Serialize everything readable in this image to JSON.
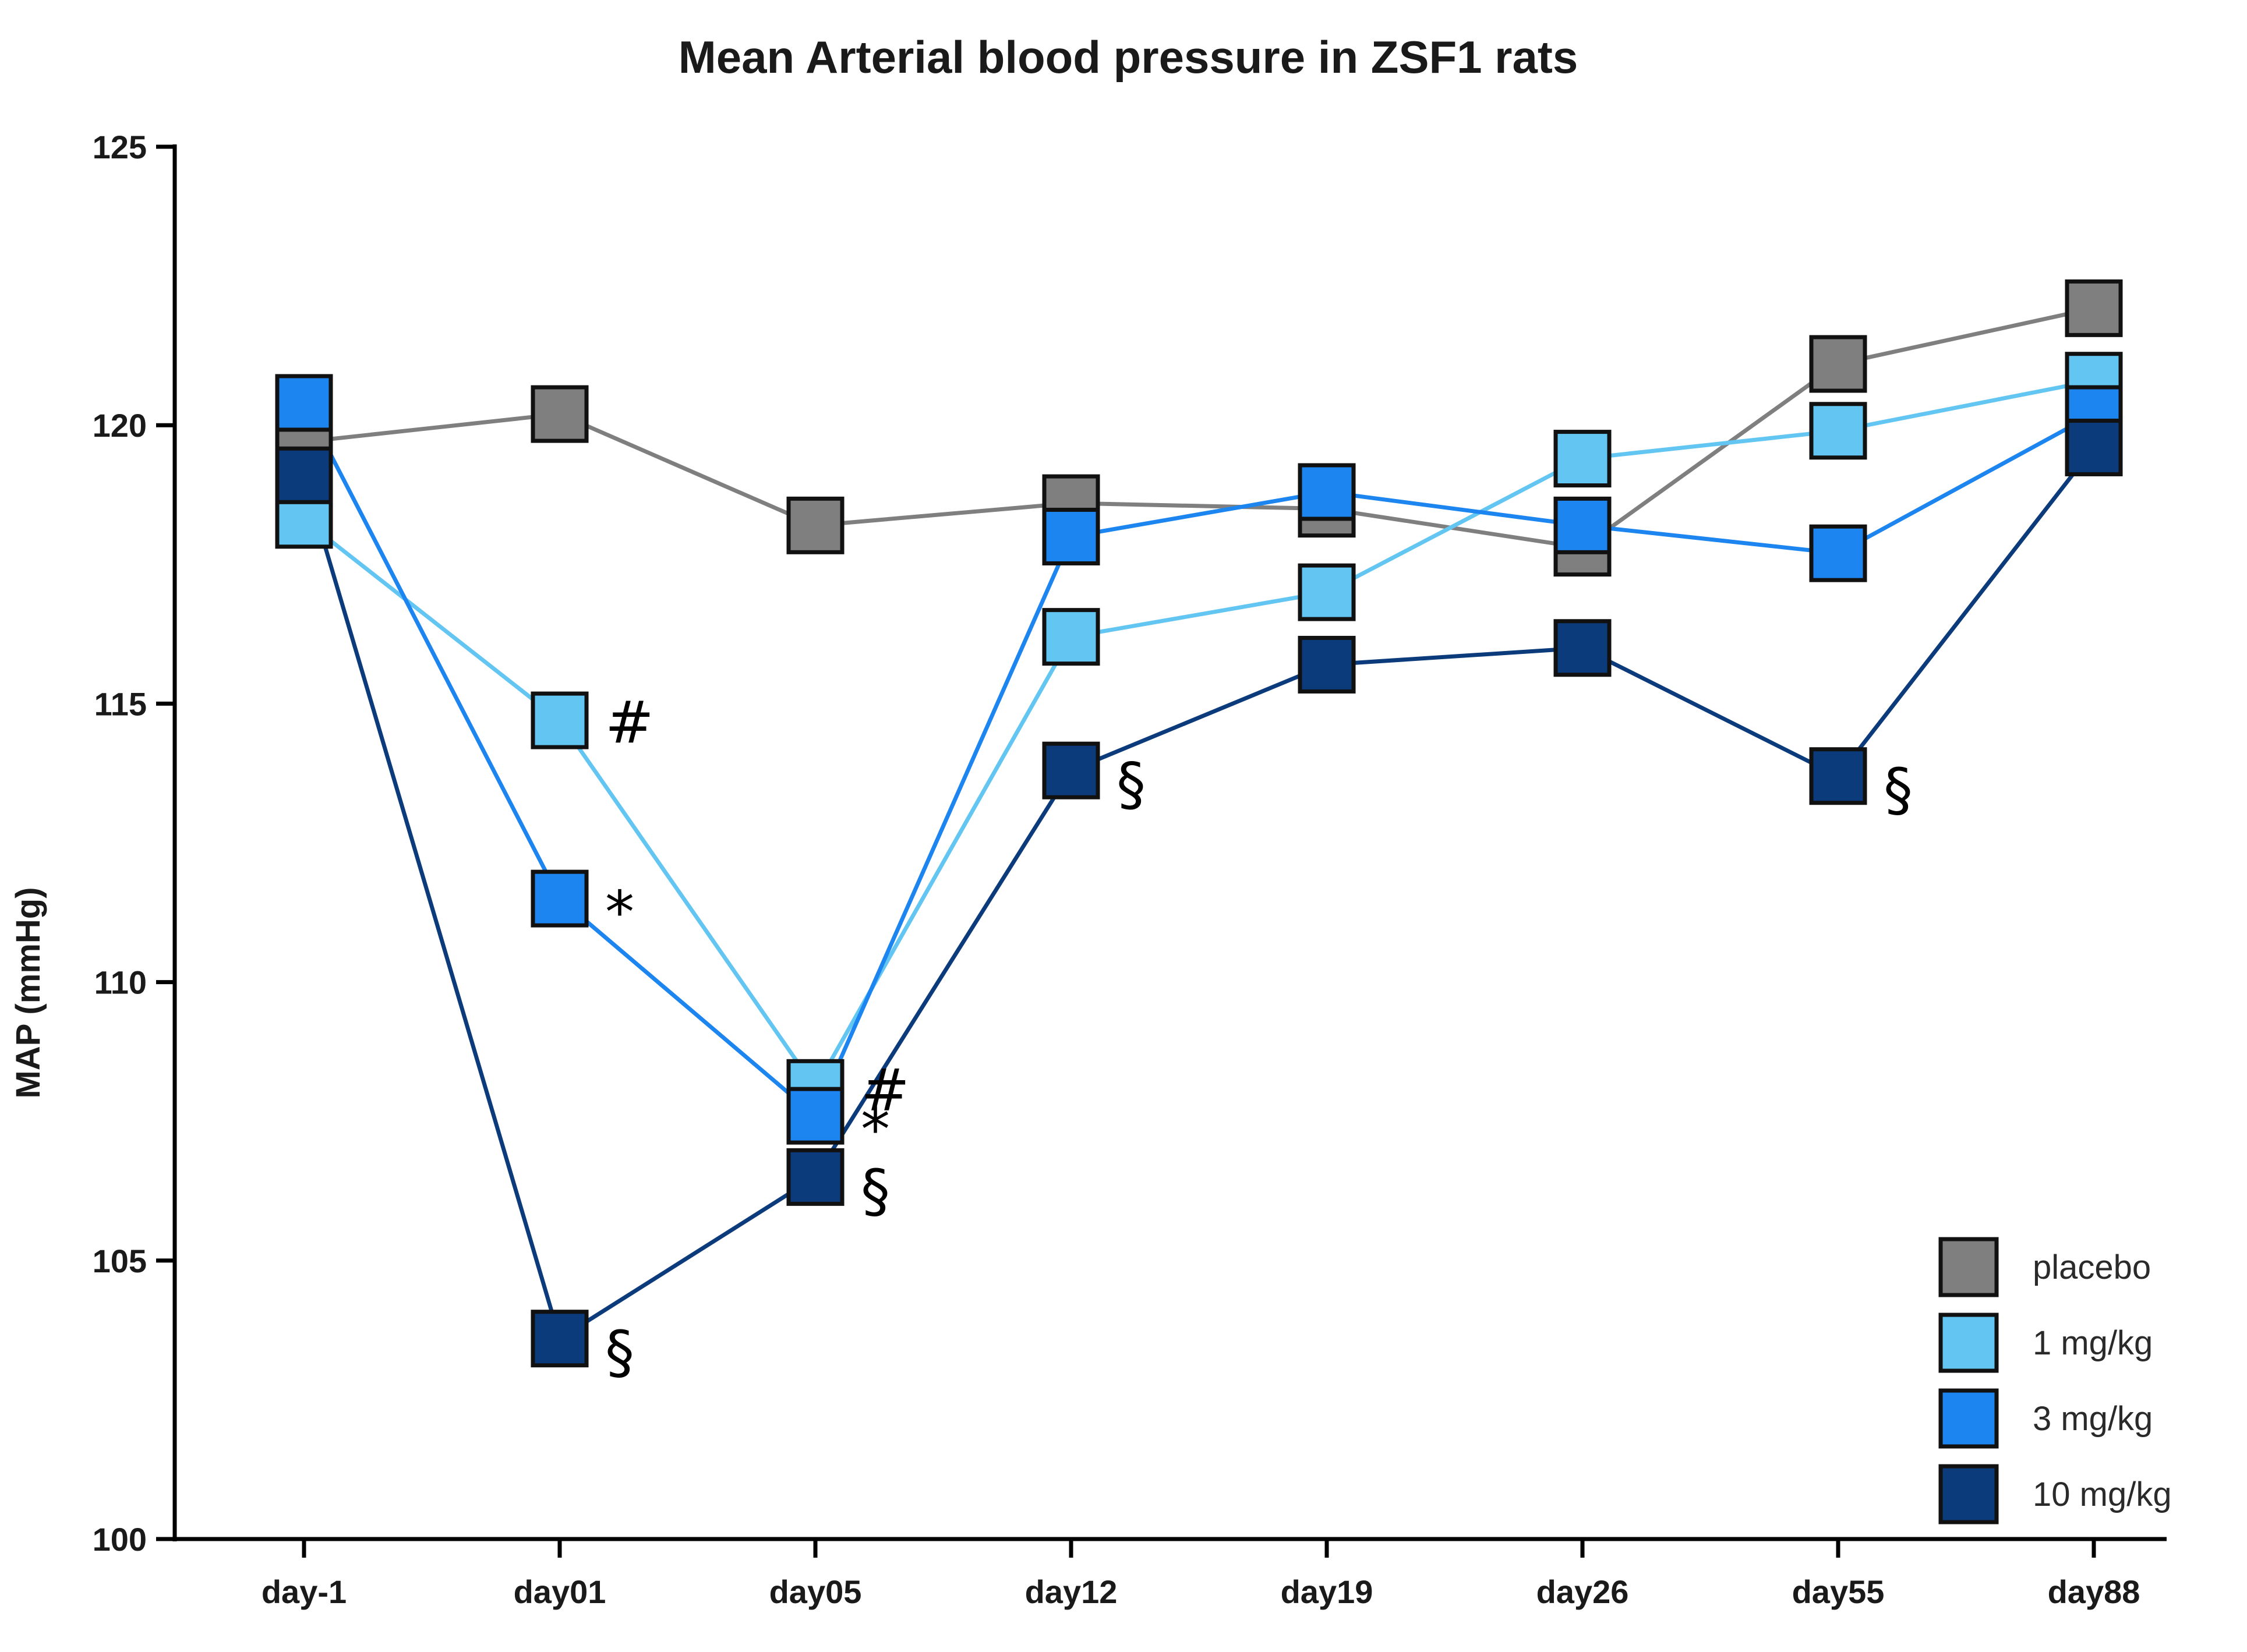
{
  "chart_data": {
    "type": "line",
    "title": "Mean Arterial blood pressure in ZSF1 rats",
    "xlabel": "",
    "ylabel": "MAP (mmHg)",
    "ylim": [
      100,
      125
    ],
    "yticks": [
      100,
      105,
      110,
      115,
      120,
      125
    ],
    "categories": [
      "day-1",
      "day01",
      "day05",
      "day12",
      "day19",
      "day26",
      "day55",
      "day88"
    ],
    "legend_position": "bottom-right",
    "series": [
      {
        "name": "placebo",
        "color": "#7f7f7f",
        "values": [
          119.7,
          120.2,
          118.2,
          118.6,
          118.5,
          117.8,
          121.1,
          122.1
        ]
      },
      {
        "name": "1 mg/kg",
        "color": "#63c6f2",
        "values": [
          118.3,
          114.7,
          108.1,
          116.2,
          117.0,
          119.4,
          119.9,
          120.8
        ]
      },
      {
        "name": "3 mg/kg",
        "color": "#1d85ef",
        "values": [
          120.4,
          111.5,
          107.6,
          118.0,
          118.8,
          118.2,
          117.7,
          120.2
        ]
      },
      {
        "name": "10 mg/kg",
        "color": "#0c3b7c",
        "values": [
          119.1,
          103.6,
          106.5,
          113.8,
          115.7,
          116.0,
          113.7,
          119.6
        ]
      }
    ],
    "annotations": [
      {
        "category": "day01",
        "series": "1 mg/kg",
        "value": 114.7,
        "text": "#"
      },
      {
        "category": "day01",
        "series": "3 mg/kg",
        "value": 111.5,
        "text": "*"
      },
      {
        "category": "day01",
        "series": "10 mg/kg",
        "value": 103.6,
        "text": "§"
      },
      {
        "category": "day05",
        "series": "1 mg/kg",
        "value": 108.1,
        "text": "#"
      },
      {
        "category": "day05",
        "series": "3 mg/kg",
        "value": 107.6,
        "text": "*"
      },
      {
        "category": "day05",
        "series": "10 mg/kg",
        "value": 106.5,
        "text": "§"
      },
      {
        "category": "day12",
        "series": "10 mg/kg",
        "value": 113.8,
        "text": "§"
      },
      {
        "category": "day55",
        "series": "10 mg/kg",
        "value": 113.7,
        "text": "§"
      }
    ]
  }
}
